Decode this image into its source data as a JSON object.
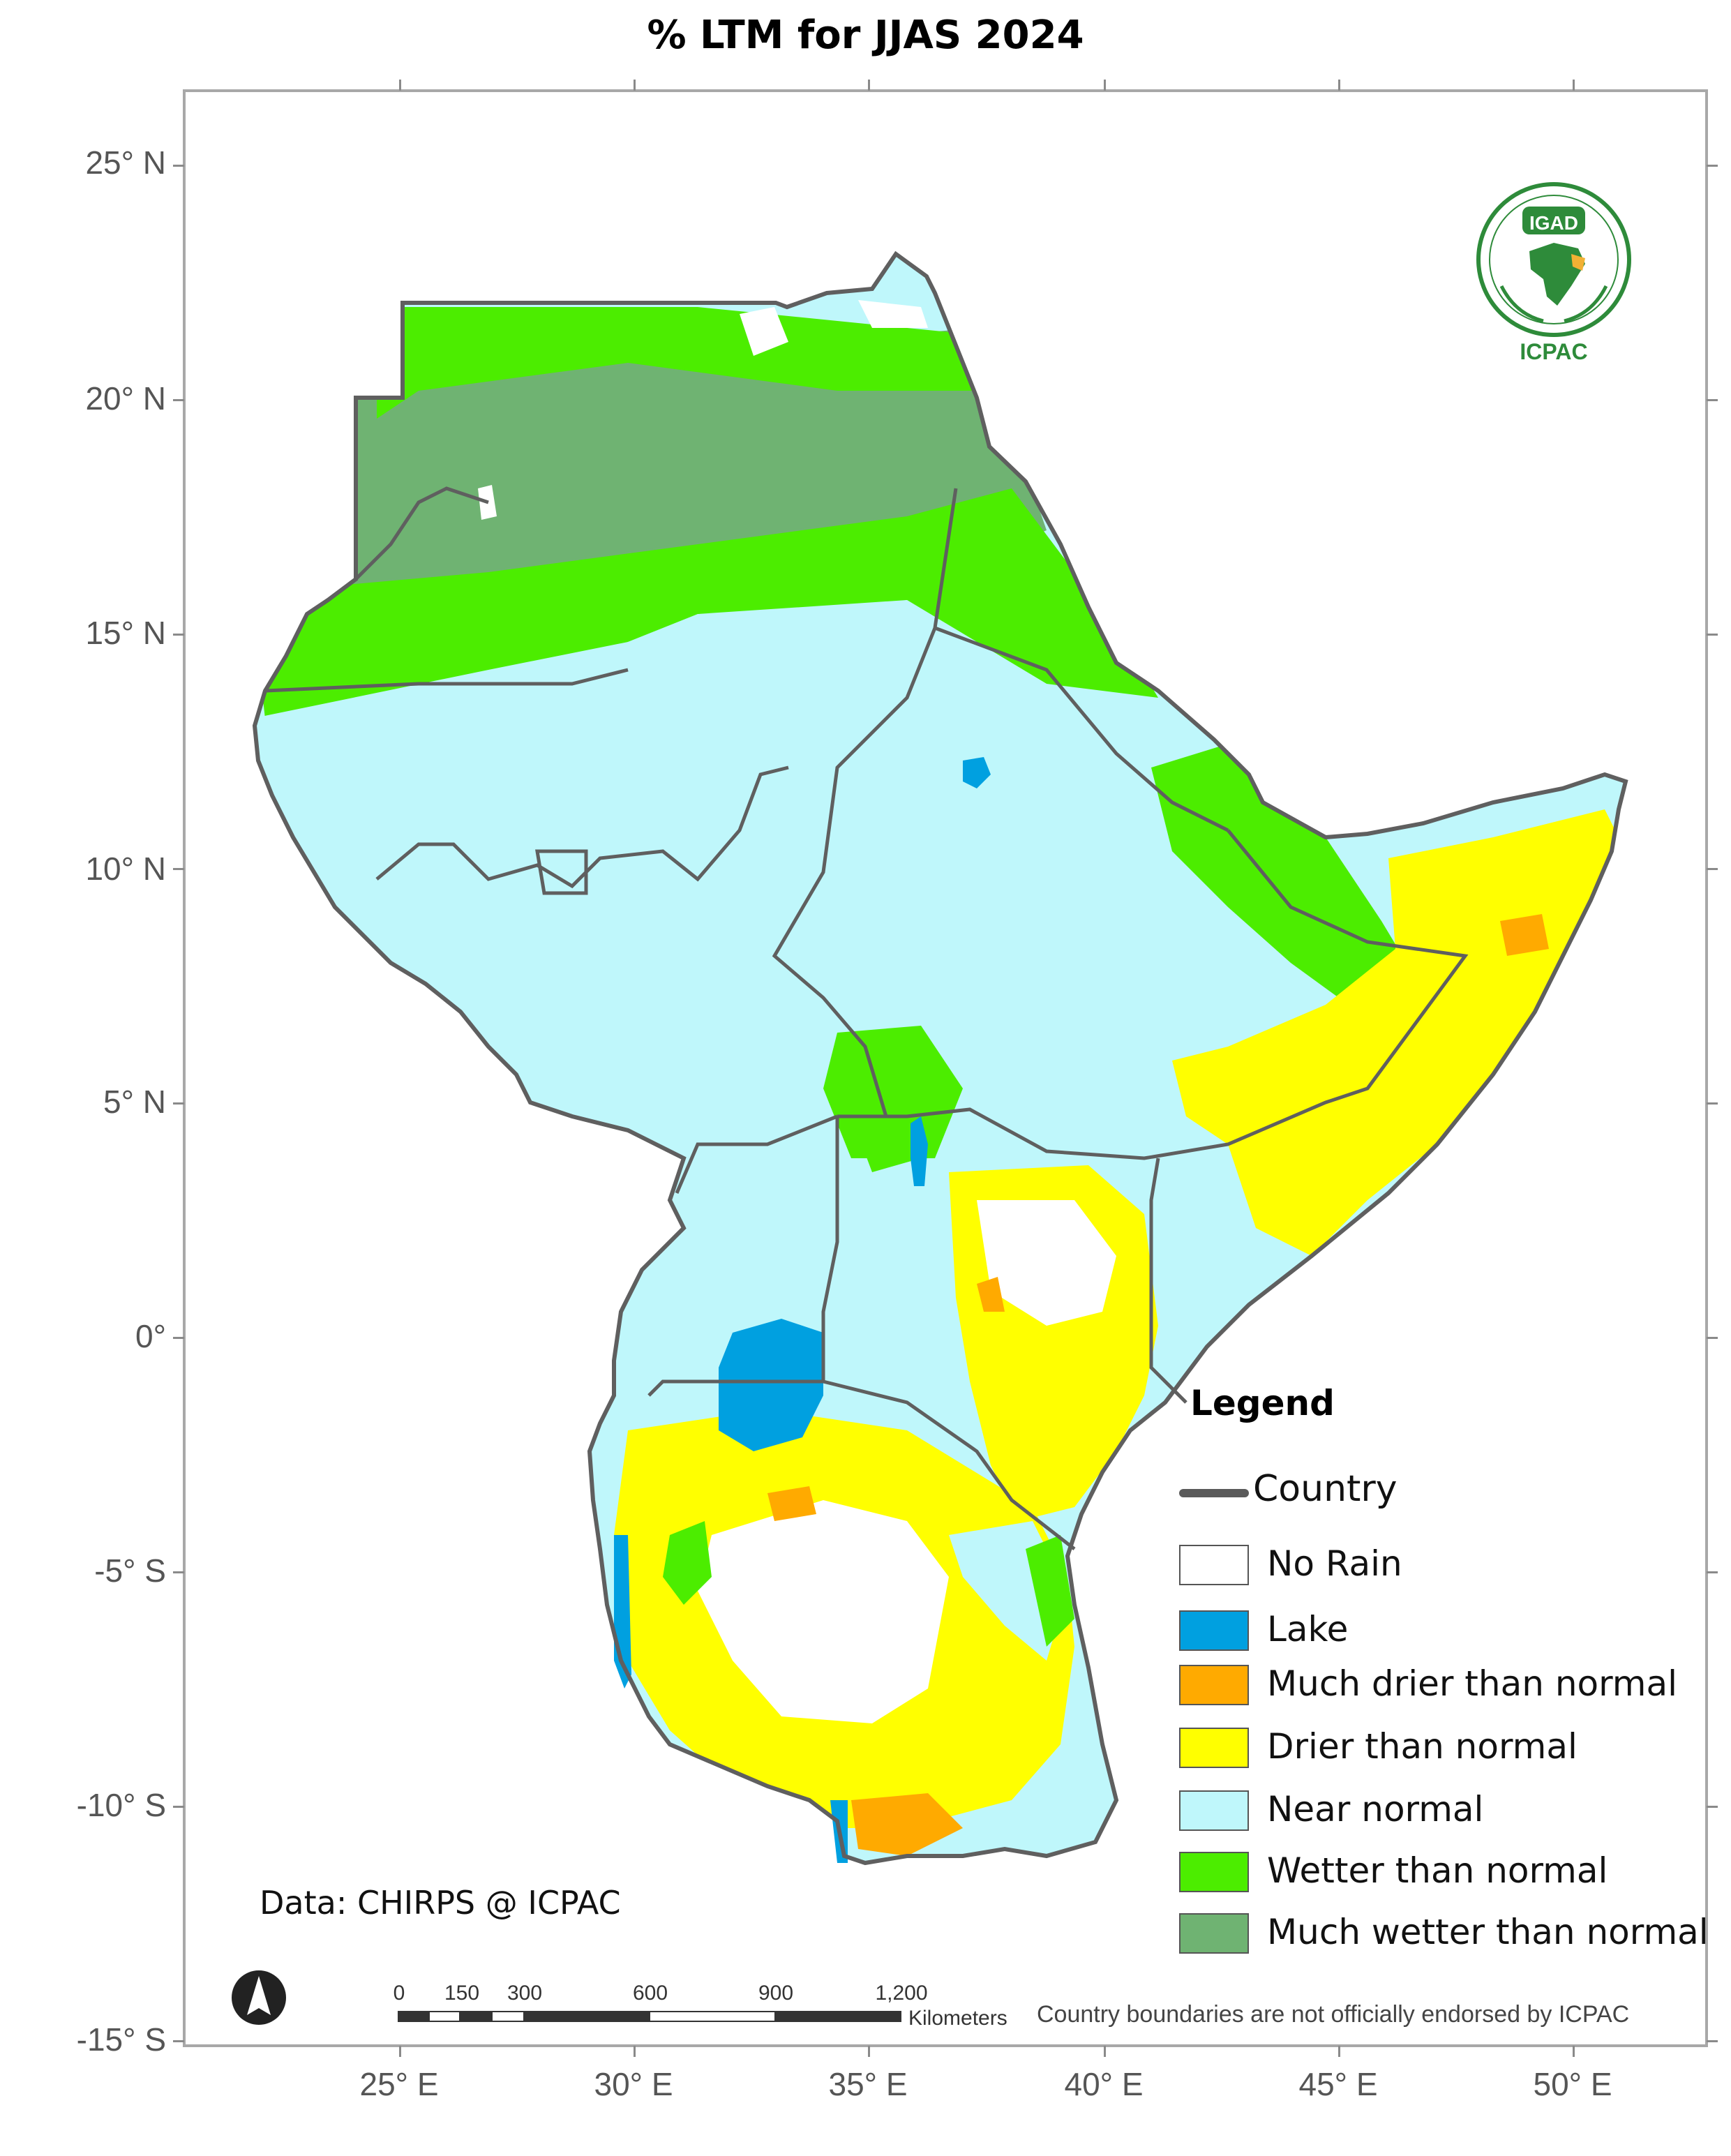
{
  "title": "% LTM for JJAS  2024",
  "axes": {
    "lat_labels": [
      "25° N",
      "20° N",
      "15° N",
      "10° N",
      "5° N",
      "0°",
      "-5° S",
      "-10° S",
      "-15° S"
    ],
    "lon_labels": [
      "25° E",
      "30° E",
      "35° E",
      "40° E",
      "45° E",
      "50° E"
    ]
  },
  "legend": {
    "title": "Legend",
    "country_label": "Country",
    "items": [
      {
        "label": "No Rain",
        "color": "#ffffff"
      },
      {
        "label": "Lake",
        "color": "#00a0e0"
      },
      {
        "label": "Much drier than normal",
        "color": "#ffaa00"
      },
      {
        "label": "Drier than normal",
        "color": "#ffff00"
      },
      {
        "label": "Near normal",
        "color": "#bff7fb"
      },
      {
        "label": "Wetter than normal",
        "color": "#4ced00"
      },
      {
        "label": "Much wetter than normal",
        "color": "#6fb372"
      }
    ]
  },
  "credit": "Data: CHIRPS @ ICPAC",
  "disclaimer": "Country boundaries are not officially endorsed by ICPAC",
  "scalebar": {
    "labels": [
      "0",
      "150",
      "300",
      "600",
      "900",
      "1,200"
    ],
    "unit": "Kilometers"
  },
  "logo": {
    "top_text": "IGAD",
    "bottom_text": "ICPAC"
  },
  "colors": {
    "border": "#5f5f5f",
    "frame": "#a8a8a8"
  },
  "icons": [
    "north-arrow-icon",
    "igad-icpac-logo-icon"
  ]
}
